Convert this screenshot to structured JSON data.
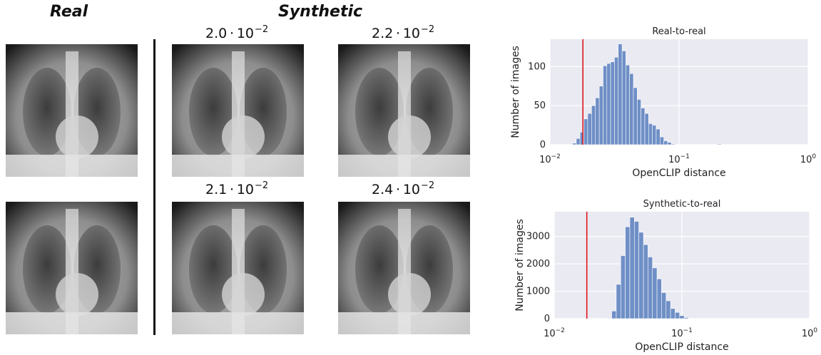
{
  "figure": {
    "real_heading": "Real",
    "synthetic_heading": "Synthetic",
    "synthetic_images": [
      {
        "mantissa": "2.0",
        "exponent": "−2"
      },
      {
        "mantissa": "2.2",
        "exponent": "−2"
      },
      {
        "mantissa": "2.1",
        "exponent": "−2"
      },
      {
        "mantissa": "2.4",
        "exponent": "−2"
      }
    ]
  },
  "chart_data": [
    {
      "type": "bar",
      "title": "Real-to-real",
      "xlabel": "OpenCLIP distance",
      "ylabel": "Number of images",
      "xscale": "log",
      "xlim": [
        0.01,
        1
      ],
      "ylim": [
        0,
        135
      ],
      "yticks": [
        0,
        50,
        100
      ],
      "xtick_labels": [
        {
          "base": "10",
          "exp": "−2"
        },
        {
          "base": "10",
          "exp": "−1"
        },
        {
          "base": "10",
          "exp": "0"
        }
      ],
      "red_line_x": 0.018,
      "grid": true,
      "bar_color": "#6f8fc6",
      "line_color": "#e0151b",
      "bins": [
        {
          "x0": 0.015,
          "x1": 0.016,
          "count": 2
        },
        {
          "x0": 0.016,
          "x1": 0.0171,
          "count": 8
        },
        {
          "x0": 0.0171,
          "x1": 0.0183,
          "count": 16
        },
        {
          "x0": 0.0183,
          "x1": 0.0196,
          "count": 33
        },
        {
          "x0": 0.0196,
          "x1": 0.021,
          "count": 40
        },
        {
          "x0": 0.021,
          "x1": 0.0225,
          "count": 50
        },
        {
          "x0": 0.0225,
          "x1": 0.0241,
          "count": 60
        },
        {
          "x0": 0.0241,
          "x1": 0.0258,
          "count": 75
        },
        {
          "x0": 0.0258,
          "x1": 0.0276,
          "count": 101
        },
        {
          "x0": 0.0276,
          "x1": 0.0295,
          "count": 104
        },
        {
          "x0": 0.0295,
          "x1": 0.0316,
          "count": 106
        },
        {
          "x0": 0.0316,
          "x1": 0.0338,
          "count": 112
        },
        {
          "x0": 0.0338,
          "x1": 0.0362,
          "count": 129
        },
        {
          "x0": 0.0362,
          "x1": 0.0387,
          "count": 120
        },
        {
          "x0": 0.0387,
          "x1": 0.0414,
          "count": 102
        },
        {
          "x0": 0.0414,
          "x1": 0.0443,
          "count": 91
        },
        {
          "x0": 0.0443,
          "x1": 0.0474,
          "count": 73
        },
        {
          "x0": 0.0474,
          "x1": 0.0507,
          "count": 58
        },
        {
          "x0": 0.0507,
          "x1": 0.0543,
          "count": 47
        },
        {
          "x0": 0.0543,
          "x1": 0.0581,
          "count": 40
        },
        {
          "x0": 0.0581,
          "x1": 0.0622,
          "count": 27
        },
        {
          "x0": 0.0622,
          "x1": 0.0665,
          "count": 25
        },
        {
          "x0": 0.0665,
          "x1": 0.0712,
          "count": 20
        },
        {
          "x0": 0.0712,
          "x1": 0.0762,
          "count": 10
        },
        {
          "x0": 0.0762,
          "x1": 0.0815,
          "count": 5
        },
        {
          "x0": 0.0815,
          "x1": 0.0872,
          "count": 3
        },
        {
          "x0": 0.0872,
          "x1": 0.0933,
          "count": 1
        },
        {
          "x0": 0.199,
          "x1": 0.213,
          "count": 1
        }
      ]
    },
    {
      "type": "bar",
      "title": "Synthetic-to-real",
      "xlabel": "OpenCLIP distance",
      "ylabel": "Number of images",
      "xscale": "log",
      "xlim": [
        0.01,
        1
      ],
      "ylim": [
        0,
        3900
      ],
      "yticks": [
        0,
        1000,
        2000,
        3000
      ],
      "xtick_labels": [
        {
          "base": "10",
          "exp": "−2"
        },
        {
          "base": "10",
          "exp": "−1"
        },
        {
          "base": "10",
          "exp": "0"
        }
      ],
      "red_line_x": 0.018,
      "grid": true,
      "bar_color": "#6f8fc6",
      "line_color": "#e0151b",
      "bins": [
        {
          "x0": 0.026,
          "x1": 0.0282,
          "count": 20
        },
        {
          "x0": 0.0282,
          "x1": 0.0306,
          "count": 280
        },
        {
          "x0": 0.0306,
          "x1": 0.0332,
          "count": 1250
        },
        {
          "x0": 0.0332,
          "x1": 0.036,
          "count": 2300
        },
        {
          "x0": 0.036,
          "x1": 0.0391,
          "count": 3350
        },
        {
          "x0": 0.0391,
          "x1": 0.0424,
          "count": 3700
        },
        {
          "x0": 0.0424,
          "x1": 0.046,
          "count": 3550
        },
        {
          "x0": 0.046,
          "x1": 0.05,
          "count": 3150
        },
        {
          "x0": 0.05,
          "x1": 0.0542,
          "count": 2700
        },
        {
          "x0": 0.0542,
          "x1": 0.0588,
          "count": 2250
        },
        {
          "x0": 0.0588,
          "x1": 0.0638,
          "count": 1850
        },
        {
          "x0": 0.0638,
          "x1": 0.0692,
          "count": 1450
        },
        {
          "x0": 0.0692,
          "x1": 0.0751,
          "count": 950
        },
        {
          "x0": 0.0751,
          "x1": 0.0815,
          "count": 650
        },
        {
          "x0": 0.0815,
          "x1": 0.0884,
          "count": 370
        },
        {
          "x0": 0.0884,
          "x1": 0.096,
          "count": 230
        },
        {
          "x0": 0.096,
          "x1": 0.1042,
          "count": 110
        },
        {
          "x0": 0.1042,
          "x1": 0.113,
          "count": 40
        },
        {
          "x0": 0.113,
          "x1": 0.1226,
          "count": 15
        },
        {
          "x0": 0.1226,
          "x1": 0.1331,
          "count": 5
        }
      ]
    }
  ]
}
